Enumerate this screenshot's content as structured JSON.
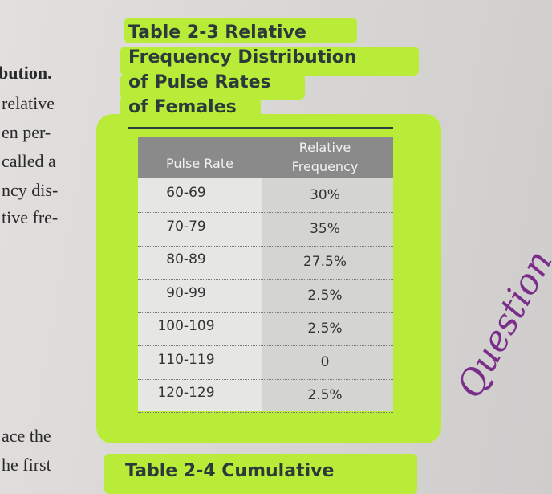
{
  "left_text": [
    "bution.",
    "relative",
    "en per-",
    "called a",
    "ncy dis-",
    "tive fre-",
    "ace the",
    "he first"
  ],
  "table": {
    "title": [
      "Table 2-3  Relative",
      "Frequency Distribution",
      "of Pulse Rates",
      "of Females"
    ],
    "headers": [
      "Pulse Rate",
      "Relative Frequency"
    ],
    "rows": [
      [
        "60-69",
        "30%"
      ],
      [
        "70-79",
        "35%"
      ],
      [
        "80-89",
        "27.5%"
      ],
      [
        "90-99",
        "2.5%"
      ],
      [
        "100-109",
        "2.5%"
      ],
      [
        "110-119",
        "0"
      ],
      [
        "120-129",
        "2.5%"
      ]
    ]
  },
  "next_table_title": "Table 2-4  Cumulative",
  "handwriting": "Question"
}
